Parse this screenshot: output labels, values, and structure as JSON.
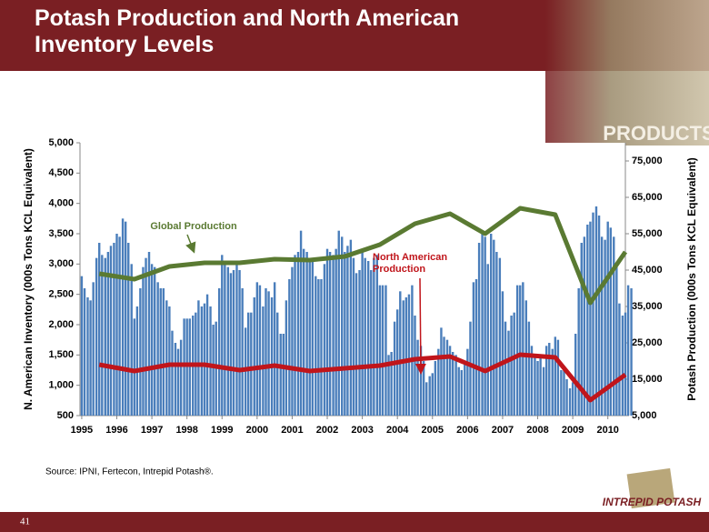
{
  "header": {
    "title": "Potash Production and North American Inventory Levels",
    "image_text": "PRODUCTS"
  },
  "chart_data": {
    "type": "bar",
    "y_label": "N. American Inventory (000s Tons KCL Equivalent)",
    "y2_label": "Potash Production (000s Tons KCL Equivalent)",
    "xlim": [
      1994.95,
      2010.5
    ],
    "xticks": [
      1995,
      1996,
      1997,
      1998,
      1999,
      2000,
      2001,
      2002,
      2003,
      2004,
      2005,
      2006,
      2007,
      2008,
      2009,
      2010
    ],
    "ylim": [
      500,
      5000
    ],
    "yticks": [
      500,
      {
        "value": 1000,
        "label": "1,000"
      },
      {
        "value": 1500,
        "label": "1,500"
      },
      {
        "value": 2000,
        "label": "2,000"
      },
      {
        "value": 2500,
        "label": "2,500"
      },
      {
        "value": 3000,
        "label": "3,000"
      },
      {
        "value": 3500,
        "label": "3,500"
      },
      {
        "value": 4000,
        "label": "4,000"
      },
      {
        "value": 4500,
        "label": "4,500"
      },
      {
        "value": 5000,
        "label": "5,000"
      }
    ],
    "y2lim": [
      5000,
      80000
    ],
    "y2ticks": [
      {
        "value": 5000,
        "label": "5,000"
      },
      {
        "value": 15000,
        "label": "15,000"
      },
      {
        "value": 25000,
        "label": "25,000"
      },
      {
        "value": 35000,
        "label": "35,000"
      },
      {
        "value": 45000,
        "label": "45,000"
      },
      {
        "value": 55000,
        "label": "55,000"
      },
      {
        "value": 65000,
        "label": "65,000"
      },
      {
        "value": 75000,
        "label": "75,000"
      }
    ],
    "grid": false,
    "series": [
      {
        "type": "bar",
        "color": "#4a7ebb",
        "x": [
          1995,
          1995.08,
          1995.17,
          1995.25,
          1995.33,
          1995.42,
          1995.5,
          1995.58,
          1995.67,
          1995.75,
          1995.83,
          1995.92,
          1996,
          1996.08,
          1996.17,
          1996.25,
          1996.33,
          1996.42,
          1996.5,
          1996.58,
          1996.67,
          1996.75,
          1996.83,
          1996.92,
          1997,
          1997.08,
          1997.17,
          1997.25,
          1997.33,
          1997.42,
          1997.5,
          1997.58,
          1997.67,
          1997.75,
          1997.83,
          1997.92,
          1998,
          1998.08,
          1998.17,
          1998.25,
          1998.33,
          1998.42,
          1998.5,
          1998.58,
          1998.67,
          1998.75,
          1998.83,
          1998.92,
          1999,
          1999.08,
          1999.17,
          1999.25,
          1999.33,
          1999.42,
          1999.5,
          1999.58,
          1999.67,
          1999.75,
          1999.83,
          1999.92,
          2000,
          2000.08,
          2000.17,
          2000.25,
          2000.33,
          2000.42,
          2000.5,
          2000.58,
          2000.67,
          2000.75,
          2000.83,
          2000.92,
          2001,
          2001.08,
          2001.17,
          2001.25,
          2001.33,
          2001.42,
          2001.5,
          2001.58,
          2001.67,
          2001.75,
          2001.83,
          2001.92,
          2002,
          2002.08,
          2002.17,
          2002.25,
          2002.33,
          2002.42,
          2002.5,
          2002.58,
          2002.67,
          2002.75,
          2002.83,
          2002.92,
          2003,
          2003.08,
          2003.17,
          2003.25,
          2003.33,
          2003.42,
          2003.5,
          2003.58,
          2003.67,
          2003.75,
          2003.83,
          2003.92,
          2004,
          2004.08,
          2004.17,
          2004.25,
          2004.33,
          2004.42,
          2004.5,
          2004.58,
          2004.67,
          2004.75,
          2004.83,
          2004.92,
          2005,
          2005.08,
          2005.17,
          2005.25,
          2005.33,
          2005.42,
          2005.5,
          2005.58,
          2005.67,
          2005.75,
          2005.83,
          2005.92,
          2006,
          2006.08,
          2006.17,
          2006.25,
          2006.33,
          2006.42,
          2006.5,
          2006.58,
          2006.67,
          2006.75,
          2006.83,
          2006.92,
          2007,
          2007.08,
          2007.17,
          2007.25,
          2007.33,
          2007.42,
          2007.5,
          2007.58,
          2007.67,
          2007.75,
          2007.83,
          2007.92,
          2008,
          2008.08,
          2008.17,
          2008.25,
          2008.33,
          2008.42,
          2008.5,
          2008.58,
          2008.67,
          2008.75,
          2008.83,
          2008.92,
          2009,
          2009.08,
          2009.17,
          2009.25,
          2009.33,
          2009.42,
          2009.5,
          2009.58,
          2009.67,
          2009.75,
          2009.83,
          2009.92,
          2010,
          2010.08,
          2010.17,
          2010.25,
          2010.33,
          2010.42,
          2010.5,
          2010.58,
          2010.67
        ],
        "values": [
          2800,
          2600,
          2450,
          2400,
          2700,
          3100,
          3350,
          3150,
          3100,
          3200,
          3300,
          3350,
          3500,
          3450,
          3750,
          3700,
          3350,
          3000,
          2100,
          2300,
          2600,
          2950,
          3100,
          3200,
          3000,
          2950,
          2700,
          2600,
          2600,
          2400,
          2300,
          1900,
          1700,
          1600,
          1750,
          2100,
          2100,
          2100,
          2150,
          2200,
          2400,
          2300,
          2350,
          2500,
          2300,
          2000,
          2050,
          2600,
          3150,
          3000,
          2950,
          2850,
          2900,
          3000,
          2900,
          2600,
          1950,
          2200,
          2200,
          2450,
          2700,
          2650,
          2300,
          2600,
          2550,
          2450,
          2700,
          2200,
          1850,
          1850,
          2400,
          2750,
          2950,
          3150,
          3200,
          3550,
          3250,
          3200,
          3100,
          3100,
          2800,
          2750,
          2750,
          3000,
          3250,
          3200,
          3150,
          3250,
          3550,
          3450,
          3200,
          3300,
          3400,
          3100,
          2850,
          2900,
          3200,
          3100,
          3050,
          2900,
          3100,
          3150,
          2650,
          2650,
          2650,
          1500,
          1550,
          2050,
          2250,
          2550,
          2400,
          2450,
          2500,
          2650,
          2150,
          1750,
          1650,
          1400,
          1050,
          1150,
          1200,
          1400,
          1600,
          1950,
          1800,
          1750,
          1650,
          1550,
          1500,
          1300,
          1250,
          1350,
          1600,
          2050,
          2700,
          2750,
          3350,
          3500,
          3450,
          3000,
          3500,
          3400,
          3200,
          3100,
          2550,
          2050,
          1900,
          2150,
          2200,
          2650,
          2650,
          2700,
          2400,
          2050,
          1650,
          1500,
          1400,
          1500,
          1300,
          1650,
          1700,
          1600,
          1800,
          1750,
          1250,
          1300,
          1100,
          950,
          1050,
          1850,
          2600,
          3350,
          3450,
          3650,
          3700,
          3850,
          3950,
          3800,
          3450,
          3400,
          3700,
          3600,
          3450,
          2950,
          2350,
          2150,
          2200,
          2650,
          2600
        ]
      },
      {
        "type": "line",
        "axis": "y2",
        "name": "Global Production",
        "color": "#5a7a32",
        "x": [
          1995.5,
          1996.5,
          1997.5,
          1998.5,
          1999.5,
          2000.5,
          2001.5,
          2002.5,
          2003.5,
          2004.5,
          2005.5,
          2006.5,
          2007.5,
          2008.5,
          2009.5,
          2010.5
        ],
        "values": [
          44000,
          42500,
          46000,
          47000,
          47000,
          48000,
          47750,
          48750,
          52000,
          57750,
          60500,
          55000,
          62000,
          60250,
          36000,
          50000
        ]
      },
      {
        "type": "line",
        "axis": "y2",
        "name": "North American Production",
        "color": "#c0151b",
        "x": [
          1995.5,
          1996.5,
          1997.5,
          1998.5,
          1999.5,
          2000.5,
          2001.5,
          2002.5,
          2003.5,
          2004.5,
          2005.5,
          2006.5,
          2007.5,
          2008.5,
          2009.5,
          2010.5
        ],
        "values": [
          19000,
          17250,
          19000,
          19000,
          17500,
          18750,
          17250,
          18000,
          18750,
          20500,
          21250,
          17250,
          21750,
          21000,
          9250,
          16250
        ]
      }
    ]
  },
  "footer": {
    "source": "Source: IPNI, Fertecon, Intrepid Potash®.",
    "page": "41",
    "logo": "INTREPID POTASH"
  }
}
